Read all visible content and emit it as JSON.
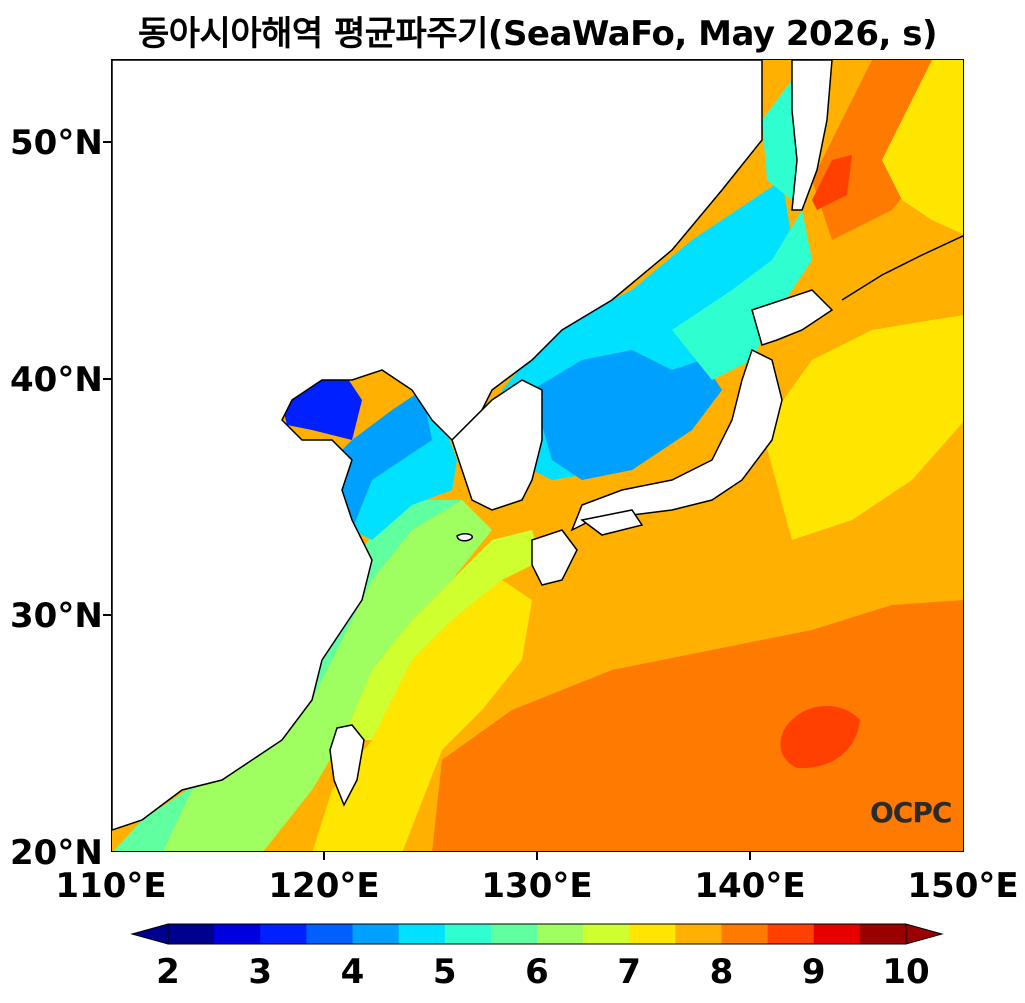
{
  "title": "동아시아해역 평균파주기(SeaWaFo, May 2026, s)",
  "logo_text": "OCPC",
  "map": {
    "lon_range": [
      110,
      150
    ],
    "lat_range": [
      20,
      53.5
    ],
    "lat_labels": [
      "50°N",
      "40°N",
      "30°N",
      "20°N"
    ],
    "lon_labels": [
      "110°E",
      "120°E",
      "130°E",
      "140°E",
      "150°E"
    ],
    "land_color": "#ffffff",
    "coastline_color": "#000000"
  },
  "colorbar": {
    "labels": [
      "2",
      "3",
      "4",
      "5",
      "6",
      "7",
      "8",
      "9",
      "10"
    ],
    "min": 2,
    "max": 10,
    "extend": "both",
    "colors": [
      "#00008f",
      "#0000df",
      "#0020ff",
      "#0060ff",
      "#00a0ff",
      "#00e0ff",
      "#2fffd0",
      "#60ff9f",
      "#9fff60",
      "#cfff2f",
      "#ffe600",
      "#ffb000",
      "#ff7a00",
      "#ff4000",
      "#e60000",
      "#9a0000"
    ]
  }
}
